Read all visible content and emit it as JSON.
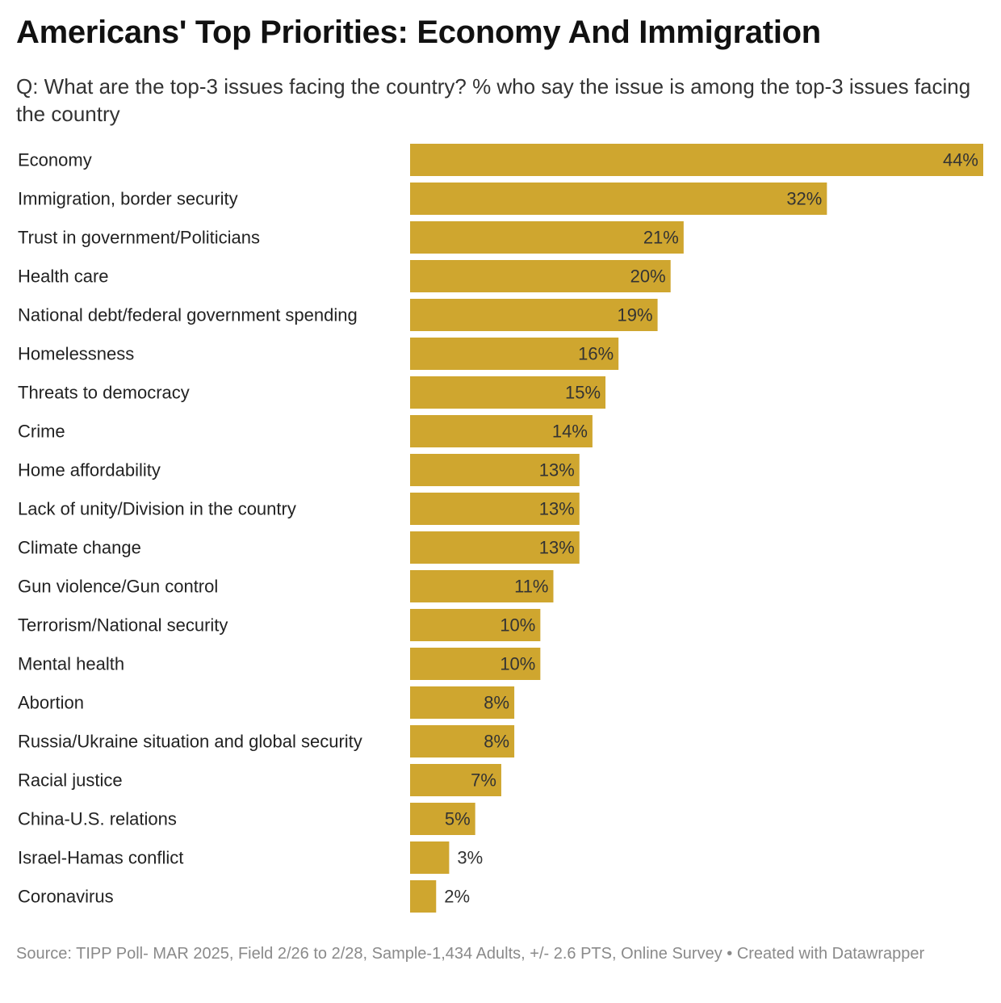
{
  "chart_data": {
    "type": "bar",
    "orientation": "horizontal",
    "title": "Americans' Top Priorities: Economy And Immigration",
    "subtitle": "Q: What are the top-3 issues facing the country? % who say the issue is among the top-3 issues facing the country",
    "categories": [
      "Economy",
      "Immigration, border security",
      "Trust in government/Politicians",
      "Health care",
      "National debt/federal government spending",
      "Homelessness",
      "Threats to democracy",
      "Crime",
      "Home affordability",
      "Lack of unity/Division in the country",
      "Climate change",
      "Gun violence/Gun control",
      "Terrorism/National security",
      "Mental health",
      "Abortion",
      "Russia/Ukraine situation and global security",
      "Racial justice",
      "China-U.S. relations",
      "Israel-Hamas conflict",
      "Coronavirus"
    ],
    "values": [
      44,
      32,
      21,
      20,
      19,
      16,
      15,
      14,
      13,
      13,
      13,
      11,
      10,
      10,
      8,
      8,
      7,
      5,
      3,
      2
    ],
    "value_suffix": "%",
    "xlim": [
      0,
      44
    ],
    "bar_color": "#cfa62f",
    "source": "Source: TIPP Poll- MAR 2025, Field 2/26 to 2/28, Sample-1,434 Adults, +/- 2.6 PTS, Online Survey • Created with Datawrapper"
  }
}
